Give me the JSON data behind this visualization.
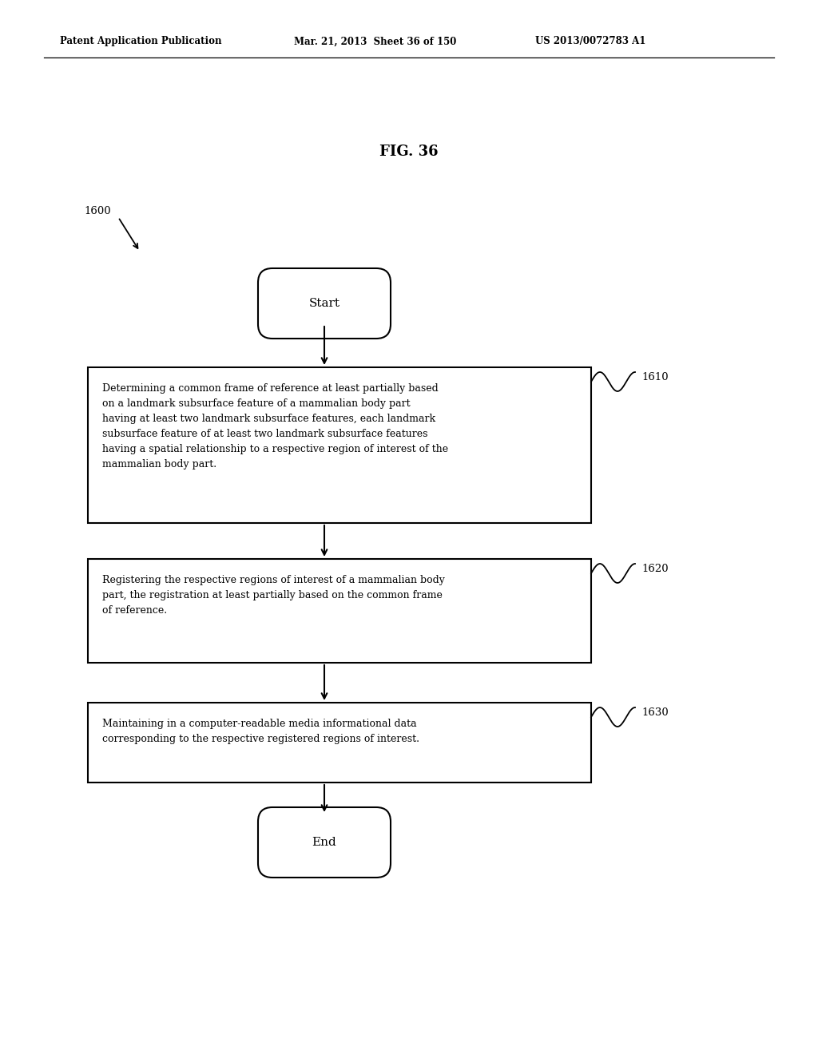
{
  "fig_width": 10.24,
  "fig_height": 13.2,
  "bg_color": "#ffffff",
  "header_left": "Patent Application Publication",
  "header_mid": "Mar. 21, 2013  Sheet 36 of 150",
  "header_right": "US 2013/0072783 A1",
  "fig_label": "FIG. 36",
  "flow_label": "1600",
  "start_label": "Start",
  "end_label": "End",
  "box1_label": "1610",
  "box2_label": "1620",
  "box3_label": "1630",
  "box1_text": "Determining a common frame of reference at least partially based\non a landmark subsurface feature of a mammalian body part\nhaving at least two landmark subsurface features, each landmark\nsubsurface feature of at least two landmark subsurface features\nhaving a spatial relationship to a respective region of interest of the\nmammalian body part.",
  "box2_text": "Registering the respective regions of interest of a mammalian body\npart, the registration at least partially based on the common frame\nof reference.",
  "box3_text": "Maintaining in a computer-readable media informational data\ncorresponding to the respective registered regions of interest."
}
